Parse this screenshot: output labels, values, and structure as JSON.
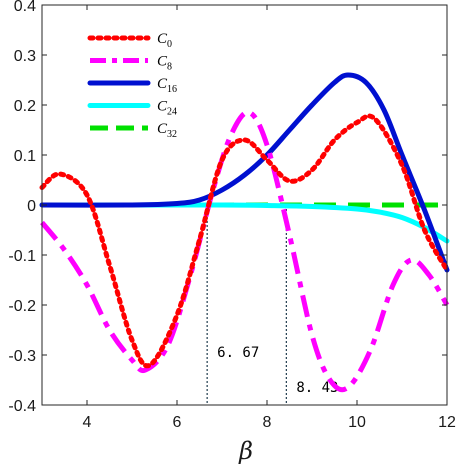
{
  "chart_data": {
    "type": "line",
    "xlabel": "β",
    "ylabel": "",
    "xlim": [
      3,
      12
    ],
    "ylim": [
      -0.4,
      0.4
    ],
    "xticks": [
      4,
      6,
      8,
      10,
      12
    ],
    "yticks": [
      -0.4,
      -0.3,
      -0.2,
      -0.1,
      0,
      0.1,
      0.2,
      0.3,
      0.4
    ],
    "ytick_labels": [
      "-0.4",
      "-0.3",
      "-0.2",
      "-0.1",
      "0",
      "0.1",
      "0.2",
      "0.3",
      "0.4"
    ],
    "grid": false,
    "legend_position": "top-left",
    "series": [
      {
        "name": "C",
        "sub": "0",
        "color": "#ff0000",
        "style": "dotted",
        "x": [
          3,
          3.4,
          4,
          4.5,
          5,
          5.4,
          6,
          6.5,
          7,
          7.5,
          8,
          8.5,
          9,
          9.5,
          10,
          10.4,
          11,
          11.5,
          12
        ],
        "y": [
          0.035,
          0.062,
          0.02,
          -0.12,
          -0.27,
          -0.32,
          -0.22,
          -0.07,
          0.09,
          0.13,
          0.09,
          0.048,
          0.07,
          0.13,
          0.165,
          0.172,
          0.08,
          -0.05,
          -0.13
        ]
      },
      {
        "name": "C",
        "sub": "8",
        "color": "#ff00ff",
        "style": "dashdot",
        "x": [
          3,
          3.5,
          4,
          4.5,
          5,
          5.3,
          5.8,
          6.3,
          6.8,
          7.2,
          7.6,
          8,
          8.5,
          9,
          9.4,
          9.8,
          10.3,
          10.8,
          11.2,
          11.6,
          12
        ],
        "y": [
          -0.035,
          -0.09,
          -0.16,
          -0.25,
          -0.31,
          -0.33,
          -0.28,
          -0.14,
          0.03,
          0.14,
          0.185,
          0.12,
          -0.06,
          -0.26,
          -0.35,
          -0.365,
          -0.29,
          -0.16,
          -0.11,
          -0.14,
          -0.2
        ]
      },
      {
        "name": "C",
        "sub": "16",
        "color": "#0010d0",
        "style": "solid",
        "x": [
          3,
          5,
          6,
          6.5,
          7,
          7.5,
          8,
          8.5,
          9,
          9.5,
          9.8,
          10.2,
          10.6,
          11,
          11.5,
          12
        ],
        "y": [
          0,
          0,
          0.003,
          0.01,
          0.03,
          0.06,
          0.1,
          0.15,
          0.2,
          0.245,
          0.26,
          0.245,
          0.19,
          0.1,
          -0.01,
          -0.13
        ]
      },
      {
        "name": "C",
        "sub": "24",
        "color": "#00ffff",
        "style": "solid",
        "x": [
          3,
          5,
          7,
          8,
          9,
          10,
          10.5,
          11,
          11.5,
          12
        ],
        "y": [
          0,
          0,
          0,
          -0.001,
          -0.003,
          -0.008,
          -0.014,
          -0.025,
          -0.045,
          -0.072
        ]
      },
      {
        "name": "C",
        "sub": "32",
        "color": "#00e000",
        "style": "dashed",
        "x": [
          3,
          12
        ],
        "y": [
          0,
          0
        ]
      }
    ],
    "annotations": [
      {
        "label": "6. 67",
        "x": 6.67
      },
      {
        "label": "8. 43",
        "x": 8.43
      }
    ]
  }
}
